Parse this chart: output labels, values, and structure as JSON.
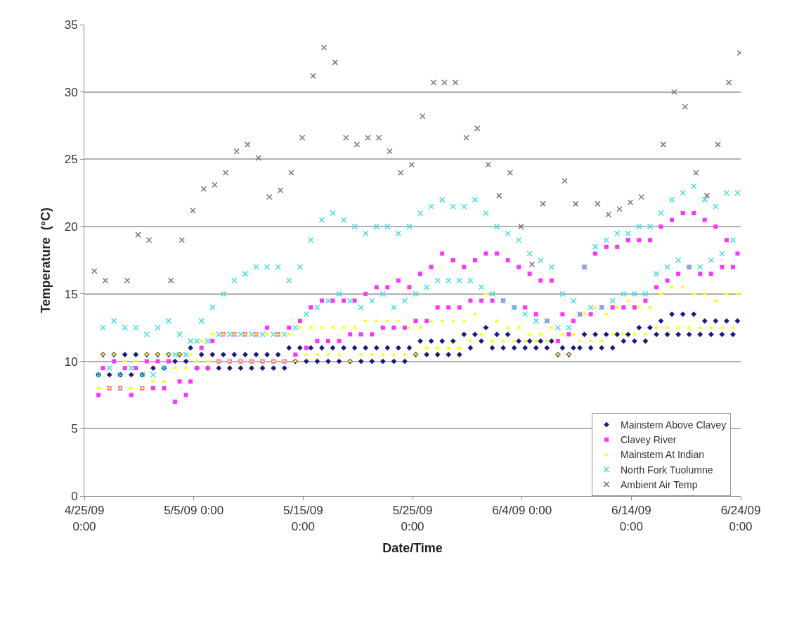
{
  "chart_data": {
    "type": "scatter",
    "xlabel": "Date/Time",
    "ylabel": "Temperature  (°C)",
    "xlim": [
      "--04-25",
      "--06-24"
    ],
    "xticks": [
      {
        "value": "--04-25",
        "label": "4/25/09 0:00"
      },
      {
        "value": "--05-05",
        "label": "5/5/09 0:00"
      },
      {
        "value": "--05-15",
        "label": "5/15/09 0:00"
      },
      {
        "value": "--05-25",
        "label": "5/25/09 0:00"
      },
      {
        "value": "--06-04",
        "label": "6/4/09 0:00"
      },
      {
        "value": "--06-14",
        "label": "6/14/09 0:00"
      },
      {
        "value": "--06-24",
        "label": "6/24/09 0:00"
      }
    ],
    "ylim": [
      0,
      35
    ],
    "yticks": [
      0,
      5,
      10,
      15,
      20,
      25,
      30,
      35
    ],
    "grid": "y",
    "legend": "bottom right",
    "x": [
      "--04-26T07:00",
      "--04-26T17:00",
      "--04-27T07:00",
      "--04-27T17:00",
      "--04-28T07:00",
      "--04-28T17:00",
      "--04-29T07:00",
      "--04-29T17:00",
      "--04-30T07:00",
      "--04-30T17:00",
      "--05-01T07:00",
      "--05-01T17:00",
      "--05-02T07:00",
      "--05-02T17:00",
      "--05-03T07:00",
      "--05-03T17:00",
      "--05-04T07:00",
      "--05-04T17:00",
      "--05-05T07:00",
      "--05-05T17:00",
      "--05-06T07:00",
      "--05-06T17:00",
      "--05-07T07:00",
      "--05-07T17:00",
      "--05-08T07:00",
      "--05-08T17:00",
      "--05-09T07:00",
      "--05-09T17:00",
      "--05-10T07:00",
      "--05-10T17:00",
      "--05-11T07:00",
      "--05-11T17:00",
      "--05-12T07:00",
      "--05-12T17:00",
      "--05-13T07:00",
      "--05-13T17:00",
      "--05-14T07:00",
      "--05-14T17:00",
      "--05-15T07:00",
      "--05-15T17:00",
      "--05-16T07:00",
      "--05-16T17:00",
      "--05-17T07:00",
      "--05-17T17:00",
      "--05-18T07:00",
      "--05-18T17:00",
      "--05-19T07:00",
      "--05-19T17:00",
      "--05-20T07:00",
      "--05-20T17:00",
      "--05-21T07:00",
      "--05-21T17:00",
      "--05-22T07:00",
      "--05-22T17:00",
      "--05-23T07:00",
      "--05-23T17:00",
      "--05-24T07:00",
      "--05-24T17:00",
      "--05-25T07:00",
      "--05-25T17:00",
      "--05-26T07:00",
      "--05-26T17:00",
      "--05-27T07:00",
      "--05-27T17:00",
      "--05-28T07:00",
      "--05-28T17:00",
      "--05-29T07:00",
      "--05-29T17:00",
      "--05-30T07:00",
      "--05-30T17:00",
      "--05-31T07:00",
      "--05-31T17:00",
      "--06-01T07:00",
      "--06-01T17:00",
      "--06-02T07:00",
      "--06-02T17:00",
      "--06-03T07:00",
      "--06-03T17:00",
      "--06-04T07:00",
      "--06-04T17:00",
      "--06-05T07:00",
      "--06-05T17:00",
      "--06-06T07:00",
      "--06-06T17:00",
      "--06-07T07:00",
      "--06-07T17:00",
      "--06-08T07:00",
      "--06-08T17:00",
      "--06-09T07:00",
      "--06-09T17:00",
      "--06-10T07:00",
      "--06-10T17:00",
      "--06-11T07:00",
      "--06-11T17:00",
      "--06-12T07:00",
      "--06-12T17:00",
      "--06-13T07:00",
      "--06-13T17:00",
      "--06-14T07:00",
      "--06-14T17:00",
      "--06-15T07:00",
      "--06-15T17:00",
      "--06-16T07:00",
      "--06-16T17:00",
      "--06-17T07:00",
      "--06-17T17:00",
      "--06-18T07:00",
      "--06-18T17:00",
      "--06-19T07:00",
      "--06-19T17:00",
      "--06-20T07:00",
      "--06-20T17:00",
      "--06-21T07:00",
      "--06-21T17:00",
      "--06-22T07:00",
      "--06-22T17:00",
      "--06-23T07:00",
      "--06-23T17:00"
    ],
    "series": [
      {
        "name": "Mainstem Above Clavey",
        "color": "#1a1a7a",
        "marker": "diamond",
        "values": [
          9,
          10.5,
          9,
          10.5,
          9,
          10.5,
          9,
          10.5,
          9,
          10.5,
          9.5,
          10.5,
          9.5,
          10.5,
          10,
          10.5,
          10,
          11,
          9.5,
          10.5,
          9.5,
          10.5,
          9.5,
          10.5,
          9.5,
          10.5,
          9.5,
          10.5,
          9.5,
          10.5,
          9.5,
          10.5,
          9.5,
          10.5,
          9.5,
          11,
          10,
          11,
          10,
          11,
          10,
          11,
          10,
          11,
          10,
          11,
          10,
          11,
          10,
          11,
          10,
          11,
          10,
          11,
          10,
          11,
          10,
          11,
          10.5,
          11.5,
          10.5,
          11.5,
          10.5,
          11.5,
          10.5,
          11.5,
          10.5,
          12,
          11,
          12,
          11.5,
          12.5,
          11,
          12,
          11,
          12,
          11,
          11.5,
          11,
          11.5,
          11,
          11.5,
          11,
          11.5,
          10.5,
          11,
          10.5,
          11,
          11,
          12,
          11,
          12,
          11,
          12,
          11,
          12,
          11.5,
          12,
          11.5,
          12.5,
          11.5,
          12.5,
          12,
          13,
          12,
          13.5,
          12,
          13.5,
          12,
          13.5,
          12,
          13,
          12,
          13,
          12,
          13,
          12,
          13
        ]
      },
      {
        "name": "Clavey River",
        "color": "#ff33ff",
        "marker": "square",
        "values": [
          7.5,
          9.5,
          8,
          10,
          8,
          9.5,
          7.5,
          9.5,
          8,
          10,
          8,
          10,
          8,
          10,
          7,
          8.5,
          7.5,
          8.5,
          9.5,
          11,
          9.5,
          11.5,
          10,
          12,
          10,
          12,
          10,
          12,
          10,
          12,
          10,
          12.5,
          10,
          12,
          10,
          12.5,
          10.5,
          13,
          11,
          14,
          11.5,
          14.5,
          11.5,
          14.5,
          11.5,
          14.5,
          12,
          14.5,
          12,
          15,
          12,
          15.5,
          12.5,
          15.5,
          12.5,
          16,
          12.5,
          15.5,
          13,
          16.5,
          13,
          17,
          14,
          18,
          14,
          17.5,
          14,
          17,
          14.5,
          17.5,
          14.5,
          18,
          14.5,
          18,
          14.5,
          17.5,
          14,
          17,
          14,
          16.5,
          13.5,
          16,
          13,
          16,
          11.5,
          13.5,
          12,
          13,
          13.5,
          17,
          13.5,
          18,
          14,
          18.5,
          14,
          18.5,
          14,
          19,
          14,
          19,
          14.5,
          19,
          15.5,
          20,
          16,
          20.5,
          16.5,
          21,
          17,
          21,
          16.5,
          20.5,
          16.5,
          20,
          17,
          19,
          17,
          18
        ]
      },
      {
        "name": "Mainstem At Indian",
        "color": "#ffff00",
        "marker": "triangle",
        "values": [
          8,
          10.5,
          8,
          10.5,
          8,
          10,
          8,
          10,
          8,
          10.5,
          8.5,
          10.5,
          8.5,
          10.5,
          9.5,
          10.5,
          9.5,
          10.5,
          10,
          11.5,
          10,
          12,
          10,
          12,
          10,
          12,
          10,
          12,
          10,
          12,
          10,
          12,
          10,
          12,
          10,
          12,
          10,
          12.5,
          10.5,
          12.5,
          10.5,
          12.5,
          10.5,
          12.5,
          10.5,
          12.5,
          10,
          12.5,
          10.5,
          13,
          10.5,
          13,
          10.5,
          13,
          10.5,
          13,
          10.5,
          12.5,
          10.5,
          12.5,
          11,
          13,
          11,
          13,
          11,
          13,
          11,
          13,
          11.5,
          13.5,
          12,
          15,
          11.5,
          13,
          11.5,
          12.5,
          11.5,
          12.5,
          11.5,
          12,
          11.5,
          12,
          11.5,
          12.5,
          10.5,
          12,
          10.5,
          12,
          11.5,
          13.5,
          11.5,
          14,
          11.5,
          13.5,
          12,
          14,
          12,
          14.5,
          12,
          14,
          12,
          14,
          12.5,
          15,
          12.5,
          15.5,
          12.5,
          15.5,
          12.5,
          15,
          12.5,
          15,
          12.5,
          14.5,
          12.5,
          15,
          12.5,
          15
        ]
      },
      {
        "name": "North Fork Tuolumne",
        "color": "#40e0e0",
        "marker": "cross",
        "values": [
          9,
          12.5,
          9.5,
          13,
          9,
          12.5,
          9.5,
          12.5,
          9,
          12,
          9,
          12.5,
          9.5,
          13,
          10.5,
          12,
          10.5,
          11.5,
          11.5,
          13,
          11.5,
          14,
          12,
          15,
          12,
          16,
          12,
          16.5,
          12,
          17,
          12,
          17,
          12,
          17,
          12,
          16,
          12.5,
          17,
          13.5,
          19,
          14,
          20.5,
          14.5,
          21,
          15,
          20.5,
          14.5,
          20,
          14,
          19.5,
          14.5,
          20,
          15,
          20,
          14,
          19.5,
          14.5,
          20,
          15,
          21,
          15.5,
          21.5,
          16,
          22,
          16,
          21.5,
          16,
          21.5,
          16,
          22,
          15.5,
          21,
          15,
          20,
          14.5,
          19.5,
          14,
          19,
          13.5,
          18,
          13,
          17.5,
          13,
          17,
          12.5,
          15,
          12.5,
          14.5,
          13.5,
          17,
          14,
          18.5,
          14,
          19,
          14.5,
          19.5,
          15,
          19.5,
          15,
          20,
          15,
          20,
          16.5,
          21,
          17,
          22,
          17.5,
          22.5,
          17,
          23,
          17,
          22,
          17.5,
          21.5,
          18,
          22.5,
          19,
          22.5
        ]
      },
      {
        "name": "Ambient Air Temp",
        "color": "#777777",
        "marker": "cross",
        "x": [
          "--04-25T22:00",
          "--04-26T22:00",
          "--04-28T22:00",
          "--04-29T22:00",
          "--04-30T22:00",
          "--05-02T22:00",
          "--05-03T22:00",
          "--05-04T22:00",
          "--05-05T22:00",
          "--05-06T22:00",
          "--05-07T22:00",
          "--05-08T22:00",
          "--05-09T22:00",
          "--05-10T22:00",
          "--05-11T22:00",
          "--05-12T22:00",
          "--05-13T22:00",
          "--05-14T22:00",
          "--05-15T22:00",
          "--05-16T22:00",
          "--05-17T22:00",
          "--05-18T22:00",
          "--05-19T22:00",
          "--05-20T22:00",
          "--05-21T22:00",
          "--05-22T22:00",
          "--05-23T22:00",
          "--05-24T22:00",
          "--05-25T22:00",
          "--05-26T22:00",
          "--05-27T22:00",
          "--05-28T22:00",
          "--05-29T22:00",
          "--05-30T22:00",
          "--05-31T22:00",
          "--06-01T22:00",
          "--06-02T22:00",
          "--06-03T22:00",
          "--06-04T22:00",
          "--06-05T22:00",
          "--06-07T22:00",
          "--06-08T22:00",
          "--06-10T22:00",
          "--06-11T22:00",
          "--06-12T22:00",
          "--06-13T22:00",
          "--06-14T22:00",
          "--06-16T22:00",
          "--06-17T22:00",
          "--06-18T22:00",
          "--06-19T22:00",
          "--06-20T22:00",
          "--06-21T22:00",
          "--06-22T22:00",
          "--06-23T22:00"
        ],
        "values": [
          16.7,
          16,
          16,
          19.4,
          19,
          16,
          19,
          21.2,
          22.8,
          23.1,
          24,
          25.6,
          26.1,
          25.1,
          22.2,
          22.7,
          24,
          26.6,
          31.2,
          33.3,
          32.2,
          26.6,
          26.1,
          26.6,
          26.6,
          25.6,
          24,
          24.6,
          28.2,
          30.7,
          30.7,
          30.7,
          26.6,
          27.3,
          24.6,
          22.3,
          24,
          20,
          17.2,
          21.7,
          23.4,
          21.7,
          21.7,
          20.9,
          21.3,
          21.8,
          22.2,
          26.1,
          30,
          28.9,
          24,
          22.3,
          26.1,
          30.7,
          32.9
        ]
      }
    ]
  }
}
